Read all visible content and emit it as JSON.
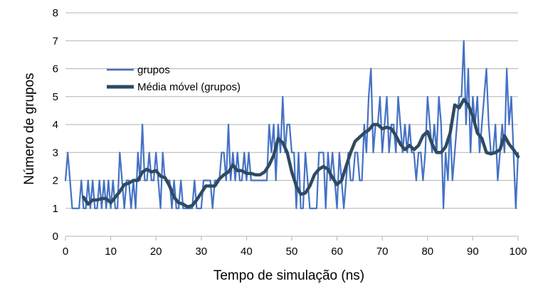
{
  "chart_data": {
    "type": "line",
    "xlabel": "Tempo de simulação (ns)",
    "ylabel": "Número de grupos",
    "xlim": [
      0,
      100
    ],
    "ylim": [
      0,
      8
    ],
    "x_ticks": [
      0,
      10,
      20,
      30,
      40,
      50,
      60,
      70,
      80,
      90,
      100
    ],
    "y_ticks": [
      0,
      1,
      2,
      3,
      4,
      5,
      6,
      7,
      8
    ],
    "grid": "horizontal",
    "legend_position": "top-left",
    "series": [
      {
        "name": "grupos",
        "color": "#4472c4",
        "x": [
          0,
          0.5,
          1,
          1.5,
          2,
          2.5,
          3,
          3.5,
          4,
          4.5,
          5,
          5.5,
          6,
          6.5,
          7,
          7.5,
          8,
          8.5,
          9,
          9.5,
          10,
          10.5,
          11,
          11.5,
          12,
          12.5,
          13,
          13.5,
          14,
          14.5,
          15,
          15.5,
          16,
          16.5,
          17,
          17.5,
          18,
          18.5,
          19,
          19.5,
          20,
          20.5,
          21,
          21.5,
          22,
          22.5,
          23,
          23.5,
          24,
          24.5,
          25,
          25.5,
          26,
          26.5,
          27,
          27.5,
          28,
          28.5,
          29,
          29.5,
          30,
          30.5,
          31,
          31.5,
          32,
          32.5,
          33,
          33.5,
          34,
          34.5,
          35,
          35.5,
          36,
          36.5,
          37,
          37.5,
          38,
          38.5,
          39,
          39.5,
          40,
          40.5,
          41,
          41.5,
          42,
          42.5,
          43,
          43.5,
          44,
          44.5,
          45,
          45.5,
          46,
          46.5,
          47,
          47.5,
          48,
          48.5,
          49,
          49.5,
          50,
          50.5,
          51,
          51.5,
          52,
          52.5,
          53,
          53.5,
          54,
          54.5,
          55,
          55.5,
          56,
          56.5,
          57,
          57.5,
          58,
          58.5,
          59,
          59.5,
          60,
          60.5,
          61,
          61.5,
          62,
          62.5,
          63,
          63.5,
          64,
          64.5,
          65,
          65.5,
          66,
          66.5,
          67,
          67.5,
          68,
          68.5,
          69,
          69.5,
          70,
          70.5,
          71,
          71.5,
          72,
          72.5,
          73,
          73.5,
          74,
          74.5,
          75,
          75.5,
          76,
          76.5,
          77,
          77.5,
          78,
          78.5,
          79,
          79.5,
          80,
          80.5,
          81,
          81.5,
          82,
          82.5,
          83,
          83.5,
          84,
          84.5,
          85,
          85.5,
          86,
          86.5,
          87,
          87.5,
          88,
          88.5,
          89,
          89.5,
          90,
          90.5,
          91,
          91.5,
          92,
          92.5,
          93,
          93.5,
          94,
          94.5,
          95,
          95.5,
          96,
          96.5,
          97,
          97.5,
          98,
          98.5,
          99,
          99.5,
          100
        ],
        "values": [
          2,
          3,
          2,
          1,
          1,
          1,
          1,
          2,
          1,
          1,
          2,
          1,
          2,
          1,
          1,
          2,
          1,
          2,
          1,
          2,
          1,
          2,
          1,
          1,
          3,
          2,
          1,
          2,
          2,
          1,
          2,
          1,
          3,
          2,
          4,
          2,
          2,
          3,
          2,
          2,
          3,
          2,
          1,
          3,
          2,
          2,
          2,
          1,
          2,
          1,
          1,
          2,
          1,
          1,
          1,
          1,
          1,
          2,
          1,
          1,
          1,
          2,
          2,
          2,
          2,
          1,
          2,
          2,
          2,
          3,
          3,
          2,
          4,
          2,
          3,
          2,
          3,
          2,
          2,
          3,
          2,
          3,
          2,
          2,
          2,
          2,
          2,
          2,
          2,
          2,
          4,
          3,
          4,
          2,
          4,
          3,
          5,
          3,
          4,
          4,
          3,
          3,
          1,
          3,
          1,
          1,
          3,
          2,
          1,
          1,
          1,
          1,
          3,
          3,
          3,
          1,
          3,
          2,
          3,
          2,
          1,
          3,
          2,
          1,
          2,
          3,
          2,
          2,
          3,
          3,
          2,
          2,
          4,
          3,
          5,
          6,
          3,
          4,
          4,
          5,
          3,
          4,
          5,
          3,
          4,
          4,
          3,
          5,
          4,
          3,
          4,
          3,
          4,
          3,
          3,
          2,
          3,
          3,
          2,
          3,
          5,
          4,
          3,
          4,
          3,
          5,
          4,
          1,
          3,
          2,
          4,
          2,
          3,
          4,
          5,
          5,
          7,
          4,
          6,
          3,
          5,
          4,
          5,
          3,
          4,
          5,
          6,
          4,
          3,
          3,
          4,
          2,
          3,
          4,
          3,
          6,
          4,
          5,
          3,
          1,
          3
        ]
      },
      {
        "name": "Média móvel (grupos)",
        "color": "#2f4a60",
        "x": [
          4,
          5,
          6,
          7,
          8,
          9,
          10,
          11,
          12,
          13,
          14,
          15,
          16,
          17,
          18,
          19,
          20,
          21,
          22,
          23,
          24,
          25,
          26,
          27,
          28,
          29,
          30,
          31,
          32,
          33,
          34,
          35,
          36,
          37,
          38,
          39,
          40,
          41,
          42,
          43,
          44,
          45,
          46,
          47,
          48,
          49,
          50,
          51,
          52,
          53,
          54,
          55,
          56,
          57,
          58,
          59,
          60,
          61,
          62,
          63,
          64,
          65,
          66,
          67,
          68,
          69,
          70,
          71,
          72,
          73,
          74,
          75,
          76,
          77,
          78,
          79,
          80,
          81,
          82,
          83,
          84,
          85,
          86,
          87,
          88,
          89,
          90,
          91,
          92,
          93,
          94,
          95,
          96,
          97,
          98,
          99,
          100
        ],
        "values": [
          1.4,
          1.15,
          1.3,
          1.3,
          1.35,
          1.35,
          1.2,
          1.4,
          1.6,
          1.85,
          1.9,
          2.0,
          2.0,
          2.3,
          2.4,
          2.3,
          2.35,
          2.15,
          2.1,
          1.8,
          1.4,
          1.2,
          1.15,
          1.05,
          1.1,
          1.3,
          1.55,
          1.8,
          1.8,
          1.8,
          2.05,
          2.2,
          2.3,
          2.55,
          2.35,
          2.35,
          2.25,
          2.25,
          2.2,
          2.2,
          2.3,
          2.55,
          2.9,
          3.5,
          3.35,
          3.0,
          2.3,
          1.8,
          1.5,
          1.55,
          1.8,
          2.2,
          2.4,
          2.5,
          2.4,
          2.1,
          1.85,
          2.0,
          2.5,
          3.0,
          3.4,
          3.55,
          3.7,
          3.8,
          4.0,
          4.0,
          3.85,
          3.9,
          3.85,
          3.6,
          3.3,
          3.1,
          3.25,
          3.1,
          3.25,
          3.6,
          3.75,
          3.3,
          3.0,
          3.0,
          3.2,
          3.7,
          4.7,
          4.6,
          4.9,
          4.7,
          4.3,
          3.7,
          3.5,
          3.0,
          2.95,
          3.0,
          3.1,
          3.6,
          3.3,
          3.1,
          2.85
        ]
      }
    ]
  }
}
